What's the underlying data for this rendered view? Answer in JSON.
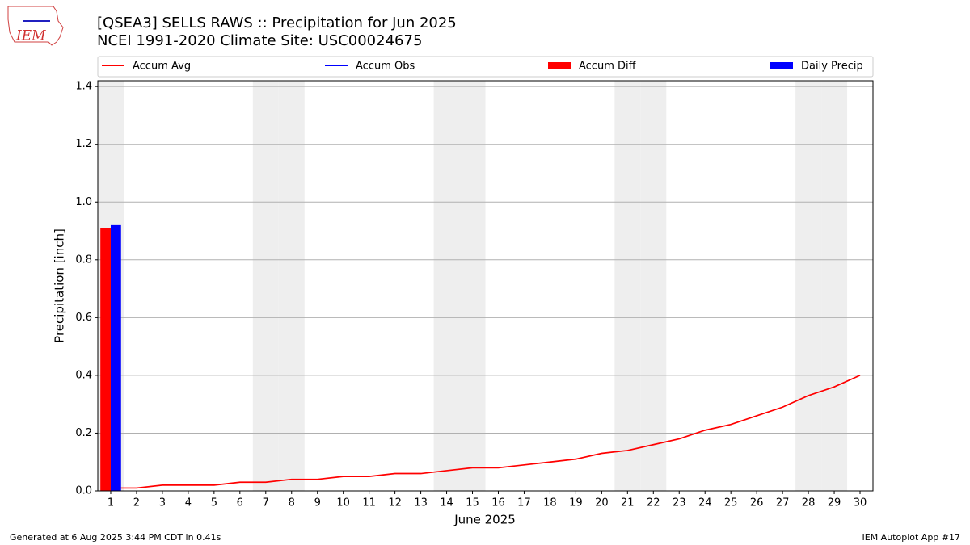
{
  "chart_data": {
    "type": "line",
    "title": "[QSEA3] SELLS RAWS :: Precipitation for Jun 2025",
    "subtitle": "NCEI 1991-2020 Climate Site: USC00024675",
    "xlabel": "June 2025",
    "ylabel": "Precipitation [inch]",
    "x": [
      1,
      2,
      3,
      4,
      5,
      6,
      7,
      8,
      9,
      10,
      11,
      12,
      13,
      14,
      15,
      16,
      17,
      18,
      19,
      20,
      21,
      22,
      23,
      24,
      25,
      26,
      27,
      28,
      29,
      30
    ],
    "xlim": [
      0.5,
      30.5
    ],
    "xticks": [
      1,
      2,
      3,
      4,
      5,
      6,
      7,
      8,
      9,
      10,
      11,
      12,
      13,
      14,
      15,
      16,
      17,
      18,
      19,
      20,
      21,
      22,
      23,
      24,
      25,
      26,
      27,
      28,
      29,
      30
    ],
    "ylim": [
      0,
      1.42
    ],
    "yticks": [
      {
        "value": 0,
        "label": "0.0"
      },
      {
        "value": 0.2,
        "label": "0.2"
      },
      {
        "value": 0.4,
        "label": "0.4"
      },
      {
        "value": 0.6,
        "label": "0.6"
      },
      {
        "value": 0.8,
        "label": "0.8"
      },
      {
        "value": 1,
        "label": "1.0"
      },
      {
        "value": 1.2,
        "label": "1.2"
      },
      {
        "value": 1.4,
        "label": "1.4"
      }
    ],
    "grid": true,
    "shaded_days": [
      1,
      7,
      8,
      14,
      15,
      21,
      22,
      28,
      29
    ],
    "series": [
      {
        "name": "Accum Avg",
        "kind": "line",
        "color": "#ff0000",
        "values": [
          0.01,
          0.01,
          0.02,
          0.02,
          0.02,
          0.03,
          0.03,
          0.04,
          0.04,
          0.05,
          0.05,
          0.06,
          0.06,
          0.07,
          0.08,
          0.08,
          0.09,
          0.1,
          0.11,
          0.13,
          0.14,
          0.16,
          0.18,
          0.21,
          0.23,
          0.26,
          0.29,
          0.33,
          0.36,
          0.4
        ]
      },
      {
        "name": "Accum Obs",
        "kind": "line",
        "color": "#0000ff",
        "values": [
          0.92,
          null,
          null,
          null,
          null,
          null,
          null,
          null,
          null,
          null,
          null,
          null,
          null,
          null,
          null,
          null,
          null,
          null,
          null,
          null,
          null,
          null,
          null,
          null,
          null,
          null,
          null,
          null,
          null,
          null
        ]
      },
      {
        "name": "Accum Diff",
        "kind": "bar",
        "color": "#ff0000",
        "values": [
          0.91,
          null,
          null,
          null,
          null,
          null,
          null,
          null,
          null,
          null,
          null,
          null,
          null,
          null,
          null,
          null,
          null,
          null,
          null,
          null,
          null,
          null,
          null,
          null,
          null,
          null,
          null,
          null,
          null,
          null
        ]
      },
      {
        "name": "Daily Precip",
        "kind": "bar",
        "color": "#0000ff",
        "values": [
          0.92,
          null,
          null,
          null,
          null,
          null,
          null,
          null,
          null,
          null,
          null,
          null,
          null,
          null,
          null,
          null,
          null,
          null,
          null,
          null,
          null,
          null,
          null,
          null,
          null,
          null,
          null,
          null,
          null,
          null
        ]
      }
    ]
  },
  "logo_text": "IEM",
  "footer_left": "Generated at 6 Aug 2025 3:44 PM CDT in 0.41s",
  "footer_right": "IEM Autoplot App #17"
}
